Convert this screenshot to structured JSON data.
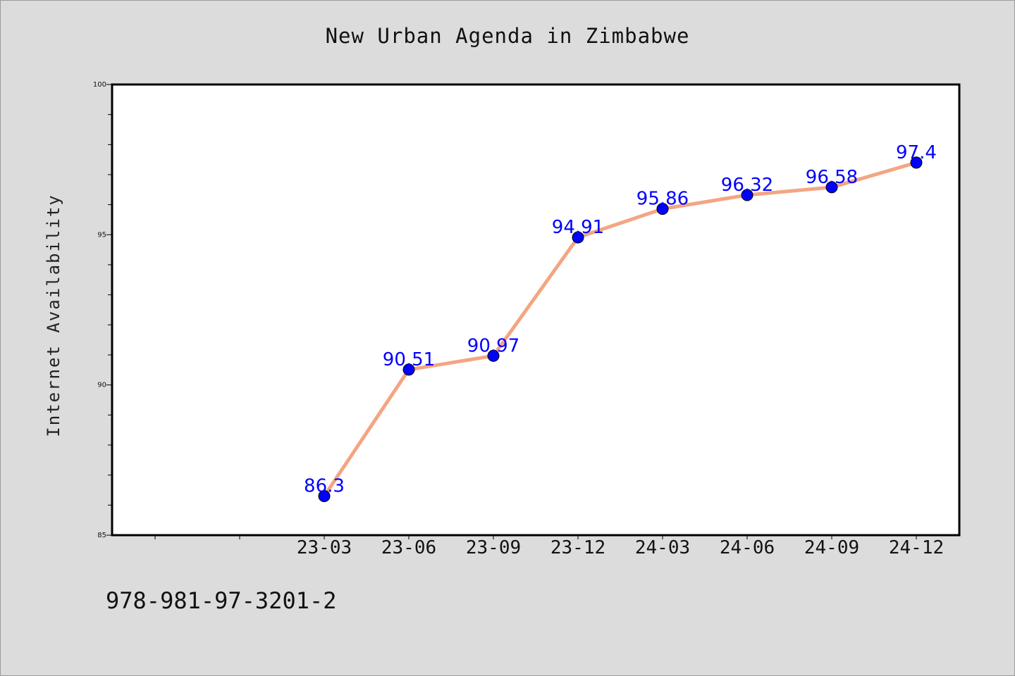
{
  "title": "New Urban Agenda in Zimbabwe",
  "footer_text": "978-981-97-3201-2",
  "colors": {
    "background": "#dcdcdc",
    "plot_background": "#ffffff",
    "line": "#f4a582",
    "marker": "#0000ff",
    "data_label": "#0000ff"
  },
  "chart_data": {
    "type": "line",
    "title": "New Urban Agenda in Zimbabwe",
    "xlabel": "",
    "ylabel": "Internet Availability",
    "x": [
      "23-03",
      "23-06",
      "23-09",
      "23-12",
      "24-03",
      "24-06",
      "24-09",
      "24-12"
    ],
    "series": [
      {
        "values": [
          86.3,
          90.51,
          90.97,
          94.91,
          95.86,
          96.32,
          96.58,
          97.4
        ],
        "data_labels": [
          "86.3",
          "90.51",
          "90.97",
          "94.91",
          "95.86",
          "96.32",
          "96.58",
          "97.4"
        ]
      }
    ],
    "ylim": [
      85,
      100
    ],
    "yticks": [
      85,
      90,
      95,
      100
    ],
    "grid": false,
    "legend": false
  }
}
